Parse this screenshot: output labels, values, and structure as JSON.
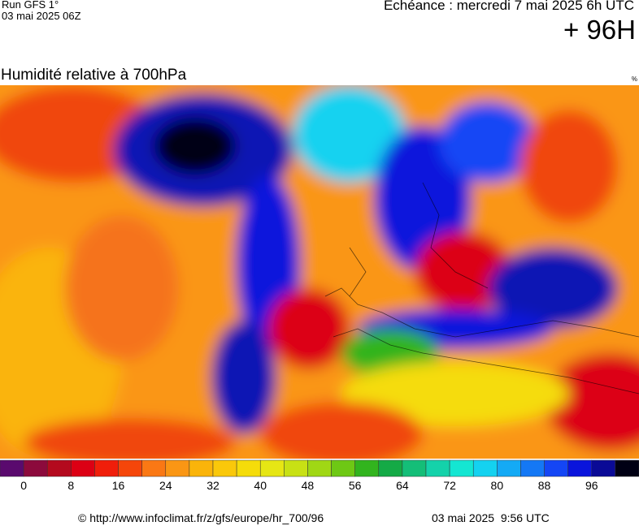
{
  "header": {
    "run": "Run GFS 1°",
    "run_date": "03 mai 2025 06Z",
    "forecast": "Echéance : mercredi 7 mai 2025 6h UTC",
    "lead": "+ 96H",
    "title": "Humidité relative à 700hPa",
    "unit": "%"
  },
  "scale": {
    "colors": [
      "#5a0a6e",
      "#8c0a3c",
      "#b40a1e",
      "#dc0014",
      "#f01e0a",
      "#f5460a",
      "#fa7814",
      "#fa9614",
      "#fab40a",
      "#fac80a",
      "#f5dc0a",
      "#e6e614",
      "#c8e114",
      "#a0d714",
      "#6ec814",
      "#32b41e",
      "#14aa46",
      "#14be78",
      "#14d2aa",
      "#14e6d2",
      "#14d2f0",
      "#14aaf5",
      "#1478f5",
      "#1446f5",
      "#0a14dc",
      "#0a0a96",
      "#000014"
    ],
    "ticks": [
      0,
      8,
      16,
      24,
      32,
      40,
      48,
      56,
      64,
      72,
      80,
      88,
      96
    ]
  },
  "footer": {
    "source": "© http://www.infoclimat.fr/z/gfs/europe/hr_700/96",
    "generated": "03 mai 2025  9:56 UTC"
  }
}
